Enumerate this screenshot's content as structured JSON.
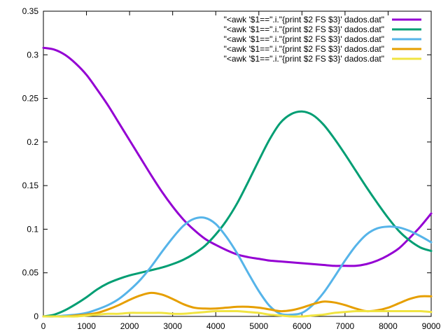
{
  "chart_data": {
    "type": "line",
    "title": "",
    "xlabel": "",
    "ylabel": "",
    "xlim": [
      0,
      9000
    ],
    "ylim": [
      0,
      0.35
    ],
    "x_ticks": [
      0,
      1000,
      2000,
      3000,
      4000,
      5000,
      6000,
      7000,
      8000,
      9000
    ],
    "y_ticks": [
      0,
      0.05,
      0.1,
      0.15,
      0.2,
      0.25,
      0.3,
      0.35
    ],
    "y_tick_labels": [
      "0",
      "0.05",
      "0.1",
      "0.15",
      "0.2",
      "0.25",
      "0.3",
      "0.35"
    ],
    "grid": false,
    "legend_position": "top-right",
    "x": [
      0,
      250,
      500,
      750,
      1000,
      1250,
      1500,
      1750,
      2000,
      2250,
      2500,
      2750,
      3000,
      3250,
      3500,
      3750,
      4000,
      4250,
      4500,
      4750,
      5000,
      5250,
      5500,
      5750,
      6000,
      6250,
      6500,
      6750,
      7000,
      7250,
      7500,
      7750,
      8000,
      8250,
      8500,
      8750,
      9000
    ],
    "series": [
      {
        "name": "\"<awk '$1==\".i.\"{print $2 FS $3}' dados.dat\"",
        "color": "#9400d3",
        "values": [
          0.308,
          0.306,
          0.3,
          0.29,
          0.277,
          0.26,
          0.242,
          0.222,
          0.202,
          0.182,
          0.162,
          0.143,
          0.126,
          0.111,
          0.099,
          0.089,
          0.082,
          0.076,
          0.071,
          0.068,
          0.066,
          0.064,
          0.063,
          0.062,
          0.061,
          0.06,
          0.059,
          0.058,
          0.058,
          0.058,
          0.06,
          0.064,
          0.07,
          0.078,
          0.09,
          0.103,
          0.118
        ]
      },
      {
        "name": "\"<awk '$1==\".i.\"{print $2 FS $3}' dados.dat\"",
        "color": "#009e73",
        "values": [
          0.0,
          0.002,
          0.007,
          0.014,
          0.022,
          0.031,
          0.038,
          0.043,
          0.047,
          0.05,
          0.053,
          0.056,
          0.06,
          0.065,
          0.072,
          0.081,
          0.094,
          0.11,
          0.13,
          0.154,
          0.179,
          0.203,
          0.222,
          0.232,
          0.235,
          0.231,
          0.22,
          0.204,
          0.186,
          0.167,
          0.148,
          0.13,
          0.113,
          0.098,
          0.087,
          0.079,
          0.075
        ]
      },
      {
        "name": "\"<awk '$1==\".i.\"{print $2 FS $3}' dados.dat\"",
        "color": "#56b4e9",
        "values": [
          0.0,
          0.0,
          0.001,
          0.002,
          0.004,
          0.008,
          0.013,
          0.02,
          0.03,
          0.042,
          0.057,
          0.074,
          0.09,
          0.104,
          0.112,
          0.113,
          0.106,
          0.091,
          0.072,
          0.05,
          0.029,
          0.012,
          0.003,
          0.002,
          0.004,
          0.013,
          0.027,
          0.045,
          0.064,
          0.081,
          0.094,
          0.101,
          0.103,
          0.102,
          0.098,
          0.092,
          0.085
        ]
      },
      {
        "name": "\"<awk '$1==\".i.\"{print $2 FS $3}' dados.dat\"",
        "color": "#e69f00",
        "values": [
          0.0,
          0.0,
          0.0,
          0.001,
          0.002,
          0.004,
          0.008,
          0.013,
          0.019,
          0.024,
          0.027,
          0.025,
          0.02,
          0.014,
          0.01,
          0.009,
          0.009,
          0.01,
          0.011,
          0.011,
          0.01,
          0.008,
          0.006,
          0.007,
          0.01,
          0.014,
          0.017,
          0.016,
          0.013,
          0.009,
          0.006,
          0.007,
          0.01,
          0.015,
          0.02,
          0.023,
          0.023
        ]
      },
      {
        "name": "\"<awk '$1==\".i.\"{print $2 FS $3}' dados.dat\"",
        "color": "#f0e442",
        "values": [
          0.0,
          0.0,
          0.0,
          0.0,
          0.001,
          0.002,
          0.003,
          0.003,
          0.004,
          0.004,
          0.004,
          0.004,
          0.003,
          0.003,
          0.004,
          0.005,
          0.006,
          0.006,
          0.006,
          0.005,
          0.004,
          0.002,
          0.001,
          0.0,
          0.0,
          0.001,
          0.002,
          0.004,
          0.005,
          0.006,
          0.006,
          0.006,
          0.006,
          0.006,
          0.006,
          0.006,
          0.005
        ]
      }
    ]
  }
}
